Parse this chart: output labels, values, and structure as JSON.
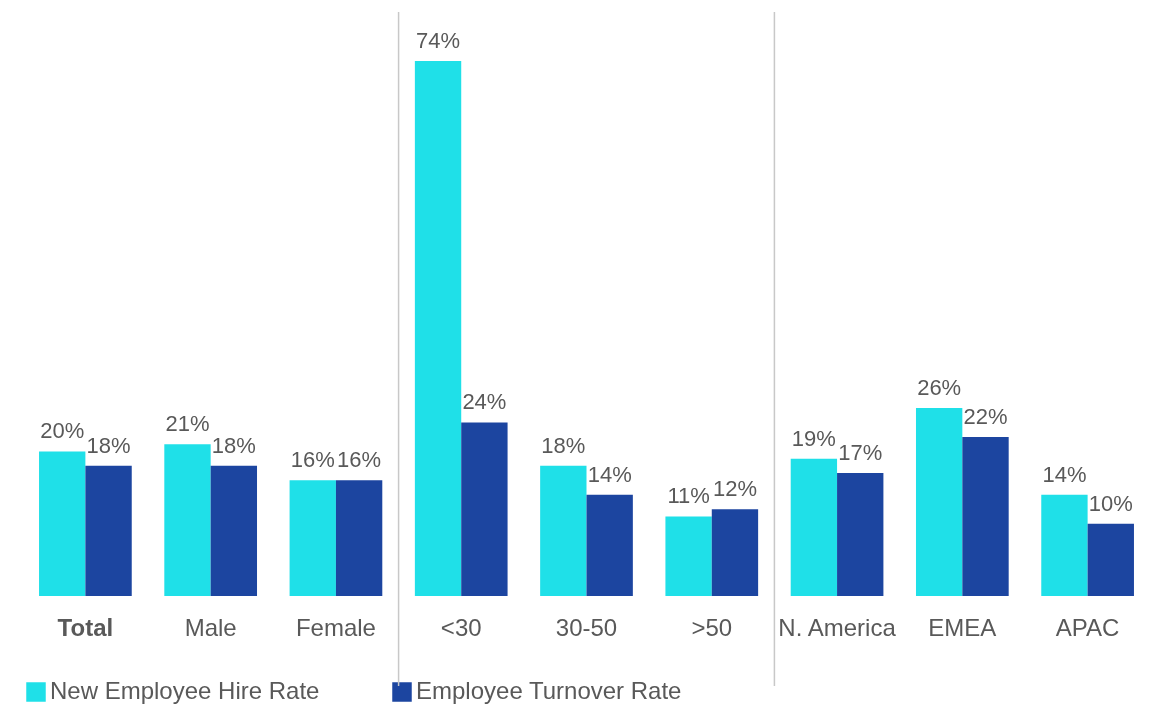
{
  "chart_data": {
    "type": "bar",
    "categories": [
      "Total",
      "Male",
      "Female",
      "<30",
      "30-50",
      ">50",
      "N. America",
      "EMEA",
      "APAC"
    ],
    "series": [
      {
        "name": "New Employee Hire Rate",
        "color": "#1fe0e8",
        "values": [
          20,
          21,
          16,
          74,
          18,
          11,
          19,
          26,
          14
        ],
        "value_labels": [
          "20%",
          "21%",
          "16%",
          "74%",
          "18%",
          "11%",
          "19%",
          "26%",
          "14%"
        ]
      },
      {
        "name": "Employee Turnover Rate",
        "color": "#1c45a0",
        "values": [
          18,
          18,
          16,
          24,
          14,
          12,
          17,
          22,
          10
        ],
        "value_labels": [
          "18%",
          "18%",
          "16%",
          "24%",
          "14%",
          "12%",
          "17%",
          "22%",
          "10%"
        ]
      }
    ],
    "legend": "bottom"
  }
}
